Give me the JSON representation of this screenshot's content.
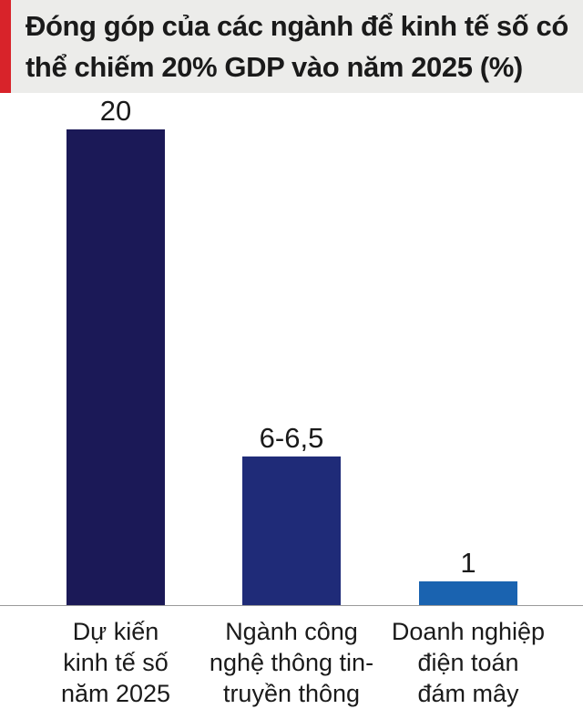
{
  "chart_data": {
    "type": "bar",
    "title": "Đóng góp của các ngành để kinh tế số có thể chiếm 20% GDP vào năm 2025 (%)",
    "categories": [
      [
        "Dự kiến",
        "kinh tế số",
        "năm 2025"
      ],
      [
        "Ngành công",
        "nghệ thông tin-",
        "truyền thông"
      ],
      [
        "Doanh nghiệp",
        "điện toán",
        "đám mây"
      ]
    ],
    "values": [
      20,
      6.25,
      1
    ],
    "value_labels": [
      "20",
      "6-6,5",
      "1"
    ],
    "ylim": [
      0,
      20
    ],
    "grid": false,
    "colors": [
      "#1b1957",
      "#1f2b78",
      "#1a63b0"
    ],
    "accent": "#d8232a"
  }
}
